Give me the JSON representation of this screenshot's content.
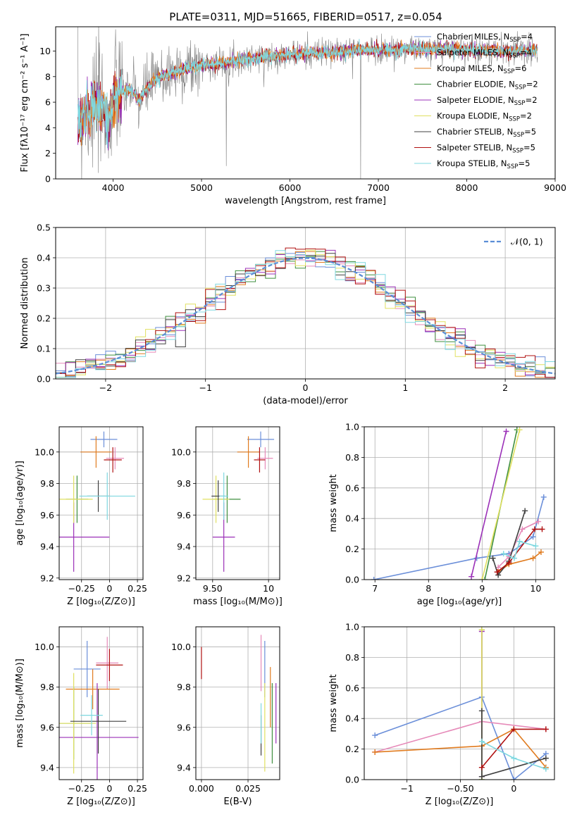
{
  "figure": {
    "title": "PLATE=0311, MJD=51665, FIBERID=0517, z=0.054"
  },
  "models": [
    {
      "label": "Chabrier MILES",
      "nssp": "4",
      "color": "#6b8fd9"
    },
    {
      "label": "Salpeter MILES",
      "nssp": "4",
      "color": "#e68ab9"
    },
    {
      "label": "Kroupa MILES",
      "nssp": "6",
      "color": "#e07b1f"
    },
    {
      "label": "Chabrier ELODIE",
      "nssp": "2",
      "color": "#3f8f3f"
    },
    {
      "label": "Salpeter ELODIE",
      "nssp": "2",
      "color": "#9b30b8"
    },
    {
      "label": "Kroupa ELODIE",
      "nssp": "2",
      "color": "#e0e060"
    },
    {
      "label": "Chabrier STELIB",
      "nssp": "5",
      "color": "#404040"
    },
    {
      "label": "Salpeter STELIB",
      "nssp": "5",
      "color": "#b01010"
    },
    {
      "label": "Kroupa STELIB",
      "nssp": "5",
      "color": "#7fd8e0"
    }
  ],
  "chart_data": [
    {
      "id": "spectrum",
      "type": "line",
      "xlabel": "wavelength [Angstrom, rest frame]",
      "ylabel": "Flux [fλ10⁻¹⁷ erg cm⁻² s⁻¹ A⁻¹]",
      "xlim": [
        3350,
        9000
      ],
      "ylim": [
        0,
        11.9
      ],
      "xticks": [
        4000,
        5000,
        6000,
        7000,
        8000,
        9000
      ],
      "yticks": [
        0,
        2,
        4,
        6,
        8,
        10
      ],
      "grid": false,
      "legend": "right",
      "data_color": "#808080",
      "continuum": {
        "x": [
          3600,
          3650,
          3700,
          3750,
          3800,
          3850,
          3900,
          3950,
          4000,
          4100,
          4200,
          4300,
          4400,
          4500,
          4700,
          5000,
          5200,
          5500,
          5800,
          6000,
          6200,
          6500,
          6800,
          7000,
          7200,
          7400,
          7600,
          7800,
          8000,
          8300,
          8600,
          8800
        ],
        "y": [
          5.0,
          4.6,
          5.4,
          5.2,
          5.8,
          5.2,
          5.6,
          4.2,
          6.2,
          6.8,
          6.9,
          6.1,
          7.3,
          7.8,
          8.4,
          8.9,
          9.0,
          9.4,
          9.6,
          9.7,
          9.8,
          9.9,
          10.1,
          10.1,
          10.1,
          10.2,
          10.1,
          10.2,
          10.1,
          10.0,
          10.0,
          10.1
        ]
      }
    },
    {
      "id": "residuals",
      "type": "histogram",
      "xlabel": "(data-model)/error",
      "ylabel": "Normed distribution",
      "xlim": [
        -2.5,
        2.5
      ],
      "ylim": [
        0,
        0.5
      ],
      "xticks": [
        -2,
        -1,
        0,
        1,
        2
      ],
      "yticks": [
        0.0,
        0.1,
        0.2,
        0.3,
        0.4,
        0.5
      ],
      "grid": true,
      "legend": "top-right",
      "reference_label": "𝒩(0, 1)",
      "reference_color": "#5b8ed6"
    },
    {
      "id": "age-vs-Z",
      "type": "errorbar",
      "xlabel": "Z [log₁₀(Z/Z⊙)]",
      "ylabel": "age  [log₁₀(age/yr)]",
      "xlim": [
        -0.45,
        0.3
      ],
      "ylim": [
        9.19,
        10.16
      ],
      "xticks": [
        -0.25,
        0.0,
        0.25
      ],
      "yticks": [
        9.2,
        9.4,
        9.6,
        9.8,
        10.0
      ],
      "grid": true,
      "points": [
        {
          "m": 0,
          "x": -0.05,
          "xe": 0.12,
          "y": 10.08,
          "ye": 0.05
        },
        {
          "m": 1,
          "x": 0.05,
          "xe": 0.08,
          "y": 9.96,
          "ye": 0.07
        },
        {
          "m": 2,
          "x": -0.12,
          "xe": 0.14,
          "y": 10.0,
          "ye": 0.1
        },
        {
          "m": 3,
          "x": -0.29,
          "xe": 0.1,
          "y": 9.7,
          "ye": 0.15
        },
        {
          "m": 4,
          "x": -0.32,
          "xe": 0.32,
          "y": 9.46,
          "ye": 0.22
        },
        {
          "m": 5,
          "x": -0.32,
          "xe": 0.17,
          "y": 9.7,
          "ye": 0.15
        },
        {
          "m": 6,
          "x": -0.1,
          "xe": 0.1,
          "y": 9.72,
          "ye": 0.1
        },
        {
          "m": 7,
          "x": 0.03,
          "xe": 0.08,
          "y": 9.95,
          "ye": 0.08
        },
        {
          "m": 8,
          "x": -0.02,
          "xe": 0.25,
          "y": 9.72,
          "ye": 0.15
        }
      ]
    },
    {
      "id": "age-vs-mass",
      "type": "errorbar",
      "xlabel": "mass [log₁₀(M/M⊙)]",
      "ylabel": "",
      "xlim": [
        9.35,
        10.1
      ],
      "ylim": [
        9.19,
        10.16
      ],
      "xticks": [
        9.5,
        10.0
      ],
      "yticks": [
        9.2,
        9.4,
        9.6,
        9.8,
        10.0
      ],
      "grid": true,
      "points": [
        {
          "m": 0,
          "x": 9.93,
          "xe": 0.12,
          "y": 10.08,
          "ye": 0.05
        },
        {
          "m": 1,
          "x": 9.97,
          "xe": 0.07,
          "y": 9.96,
          "ye": 0.07
        },
        {
          "m": 2,
          "x": 9.82,
          "xe": 0.1,
          "y": 10.0,
          "ye": 0.1
        },
        {
          "m": 3,
          "x": 9.63,
          "xe": 0.12,
          "y": 9.7,
          "ye": 0.15
        },
        {
          "m": 4,
          "x": 9.6,
          "xe": 0.1,
          "y": 9.46,
          "ye": 0.22
        },
        {
          "m": 5,
          "x": 9.53,
          "xe": 0.12,
          "y": 9.7,
          "ye": 0.15
        },
        {
          "m": 6,
          "x": 9.55,
          "xe": 0.06,
          "y": 9.72,
          "ye": 0.1
        },
        {
          "m": 7,
          "x": 9.92,
          "xe": 0.05,
          "y": 9.95,
          "ye": 0.08
        },
        {
          "m": 8,
          "x": 9.6,
          "xe": 0.04,
          "y": 9.72,
          "ye": 0.15
        }
      ]
    },
    {
      "id": "weight-vs-age",
      "type": "line",
      "xlabel": "age  [log₁₀(age/yr)]",
      "ylabel": "mass weight",
      "xlim": [
        6.8,
        10.35
      ],
      "ylim": [
        0,
        1
      ],
      "xticks": [
        7,
        8,
        9,
        10
      ],
      "yticks": [
        0.0,
        0.2,
        0.4,
        0.6,
        0.8,
        1.0
      ],
      "grid": true,
      "series": [
        {
          "m": 0,
          "x": [
            6.98,
            8.9,
            9.5,
            9.95,
            10.15
          ],
          "y": [
            0.0,
            0.14,
            0.17,
            0.28,
            0.54
          ]
        },
        {
          "m": 1,
          "x": [
            9.3,
            9.5,
            9.75,
            10.05
          ],
          "y": [
            0.08,
            0.15,
            0.33,
            0.38
          ]
        },
        {
          "m": 2,
          "x": [
            9.3,
            9.5,
            9.95,
            10.1
          ],
          "y": [
            0.05,
            0.1,
            0.14,
            0.18
          ]
        },
        {
          "m": 3,
          "x": [
            9.05,
            9.65
          ],
          "y": [
            0.0,
            0.98
          ]
        },
        {
          "m": 4,
          "x": [
            8.8,
            9.45
          ],
          "y": [
            0.02,
            0.97
          ]
        },
        {
          "m": 5,
          "x": [
            9.0,
            9.7
          ],
          "y": [
            0.0,
            0.98
          ]
        },
        {
          "m": 6,
          "x": [
            9.2,
            9.3,
            9.5,
            9.8
          ],
          "y": [
            0.14,
            0.03,
            0.12,
            0.45
          ]
        },
        {
          "m": 7,
          "x": [
            9.28,
            9.5,
            9.98,
            10.12
          ],
          "y": [
            0.05,
            0.11,
            0.33,
            0.33
          ]
        },
        {
          "m": 8,
          "x": [
            9.4,
            9.6,
            9.7,
            10.0
          ],
          "y": [
            0.17,
            0.14,
            0.25,
            0.22
          ]
        }
      ]
    },
    {
      "id": "mass-vs-Z",
      "type": "errorbar",
      "xlabel": "Z [log₁₀(Z/Z⊙)]",
      "ylabel": "mass [log₁₀(M/M⊙)]",
      "xlim": [
        -0.45,
        0.3
      ],
      "ylim": [
        9.34,
        10.1
      ],
      "xticks": [
        -0.25,
        0.0,
        0.25
      ],
      "yticks": [
        9.4,
        9.6,
        9.8,
        10.0
      ],
      "grid": true,
      "points": [
        {
          "m": 0,
          "x": -0.2,
          "xe": 0.12,
          "y": 9.89,
          "ye": 0.14
        },
        {
          "m": 1,
          "x": -0.02,
          "xe": 0.1,
          "y": 9.92,
          "ye": 0.13
        },
        {
          "m": 2,
          "x": -0.15,
          "xe": 0.24,
          "y": 9.79,
          "ye": 0.1
        },
        {
          "m": 3,
          "x": -0.32,
          "xe": 0.15,
          "y": 9.62,
          "ye": 0.18
        },
        {
          "m": 4,
          "x": -0.11,
          "xe": 0.37,
          "y": 9.55,
          "ye": 0.27
        },
        {
          "m": 5,
          "x": -0.32,
          "xe": 0.2,
          "y": 9.62,
          "ye": 0.25
        },
        {
          "m": 6,
          "x": -0.1,
          "xe": 0.25,
          "y": 9.63,
          "ye": 0.16
        },
        {
          "m": 7,
          "x": 0.0,
          "xe": 0.12,
          "y": 9.91,
          "ye": 0.08
        },
        {
          "m": 8,
          "x": -0.16,
          "xe": 0.1,
          "y": 9.66,
          "ye": 0.1
        }
      ]
    },
    {
      "id": "mass-vs-ebv",
      "type": "errorbar",
      "xlabel": "E(B-V)",
      "ylabel": "",
      "xlim": [
        -0.003,
        0.042
      ],
      "ylim": [
        9.34,
        10.1
      ],
      "xticks": [
        0.0,
        0.025
      ],
      "yticks": [
        9.4,
        9.6,
        9.8,
        10.0
      ],
      "xticklabels": [
        "0.000",
        "0.025"
      ],
      "grid": true,
      "points": [
        {
          "m": 0,
          "x": 0.034,
          "xe": 0,
          "y": 9.89,
          "ye": 0.14
        },
        {
          "m": 1,
          "x": 0.032,
          "xe": 0,
          "y": 9.92,
          "ye": 0.14
        },
        {
          "m": 2,
          "x": 0.037,
          "xe": 0,
          "y": 9.75,
          "ye": 0.15
        },
        {
          "m": 3,
          "x": 0.038,
          "xe": 0,
          "y": 9.62,
          "ye": 0.2
        },
        {
          "m": 4,
          "x": 0.04,
          "xe": 0,
          "y": 9.67,
          "ye": 0.15
        },
        {
          "m": 5,
          "x": 0.034,
          "xe": 0,
          "y": 9.6,
          "ye": 0.22
        },
        {
          "m": 6,
          "x": 0.032,
          "xe": 0,
          "y": 9.56,
          "ye": 0.1
        },
        {
          "m": 7,
          "x": 0.0,
          "xe": 0,
          "y": 9.92,
          "ye": 0.08
        },
        {
          "m": 8,
          "x": 0.032,
          "xe": 0,
          "y": 9.62,
          "ye": 0.1
        }
      ]
    },
    {
      "id": "weight-vs-Z",
      "type": "line",
      "xlabel": "Z [log₁₀(Z/Z⊙)]",
      "ylabel": "mass weight",
      "xlim": [
        -1.4,
        0.38
      ],
      "ylim": [
        0,
        1
      ],
      "xticks": [
        -1.0,
        -0.5,
        0.0
      ],
      "yticks": [
        0.0,
        0.2,
        0.4,
        0.6,
        0.8,
        1.0
      ],
      "grid": true,
      "series": [
        {
          "m": 0,
          "x": [
            -1.3,
            -0.3,
            0.0,
            0.3
          ],
          "y": [
            0.29,
            0.54,
            0.0,
            0.17
          ]
        },
        {
          "m": 1,
          "x": [
            -1.3,
            -0.3,
            0.3
          ],
          "y": [
            0.18,
            0.38,
            0.33
          ]
        },
        {
          "m": 2,
          "x": [
            -1.3,
            -0.3,
            0.0,
            0.3
          ],
          "y": [
            0.18,
            0.22,
            0.33,
            0.08
          ]
        },
        {
          "m": 3,
          "x": [
            -0.3,
            -0.3
          ],
          "y": [
            0.0,
            0.98
          ]
        },
        {
          "m": 4,
          "x": [
            -0.3,
            -0.3
          ],
          "y": [
            0.02,
            0.97
          ]
        },
        {
          "m": 5,
          "x": [
            -0.3,
            -0.3
          ],
          "y": [
            0.0,
            0.98
          ]
        },
        {
          "m": 6,
          "x": [
            -0.3,
            -0.3,
            0.3
          ],
          "y": [
            0.45,
            0.02,
            0.14
          ]
        },
        {
          "m": 7,
          "x": [
            -0.3,
            0.0,
            0.3
          ],
          "y": [
            0.08,
            0.33,
            0.33
          ]
        },
        {
          "m": 8,
          "x": [
            -0.3,
            0.0,
            0.3
          ],
          "y": [
            0.25,
            0.14,
            0.07
          ]
        }
      ]
    }
  ]
}
